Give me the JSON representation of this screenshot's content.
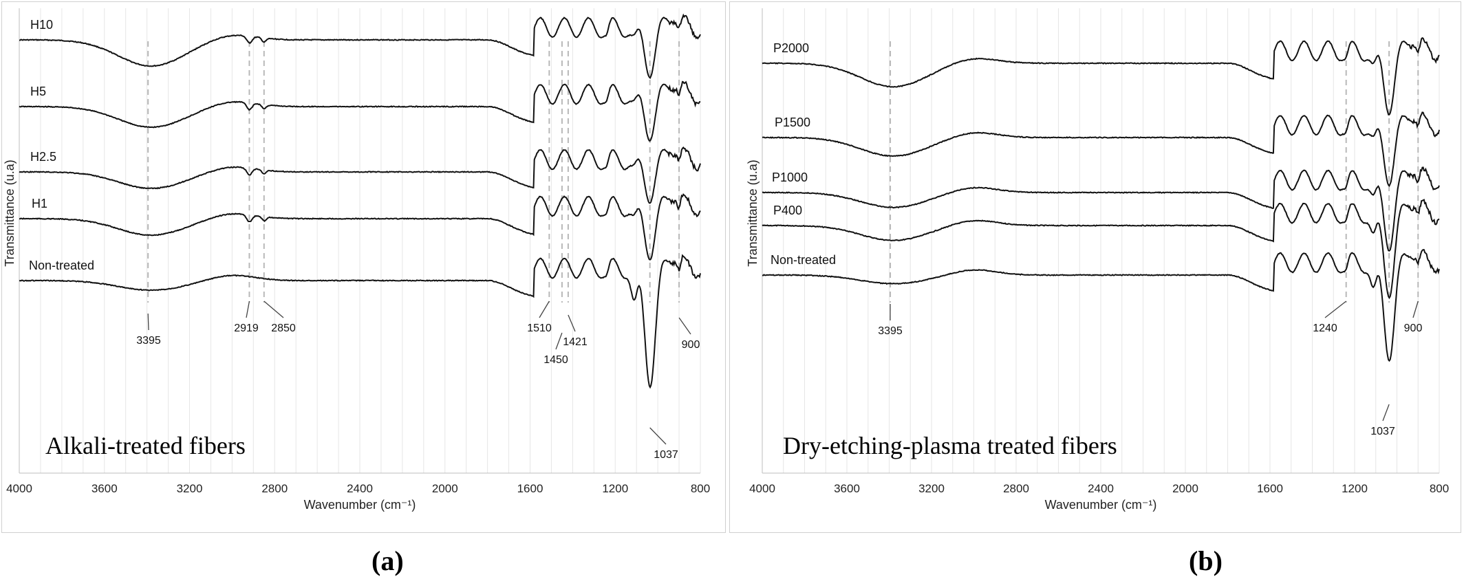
{
  "panels": {
    "a": "(a)",
    "b": "(b)"
  },
  "chart_data": [
    {
      "type": "line",
      "title": "Alkali-treated fibers",
      "xlabel": "Wavenumber (cm⁻¹)",
      "ylabel": "Transmittance (u.a)",
      "xlim": [
        4000,
        800
      ],
      "x_ticks": [
        4000,
        3600,
        3200,
        2800,
        2400,
        2000,
        1600,
        1200,
        800
      ],
      "grid": "vertical",
      "series": [
        {
          "name": "H10",
          "offset": 0.88
        },
        {
          "name": "H5",
          "offset": 0.74
        },
        {
          "name": "H2.5",
          "offset": 0.62
        },
        {
          "name": "H1",
          "offset": 0.56
        },
        {
          "name": "Non-treated",
          "offset": 0.42
        }
      ],
      "annotations": [
        {
          "x": 3395,
          "label": "3395"
        },
        {
          "x": 2919,
          "label": "2919"
        },
        {
          "x": 2850,
          "label": "2850"
        },
        {
          "x": 1510,
          "label": "1510"
        },
        {
          "x": 1450,
          "label": "1450"
        },
        {
          "x": 1421,
          "label": "1421"
        },
        {
          "x": 1037,
          "label": "1037"
        },
        {
          "x": 900,
          "label": "900"
        }
      ]
    },
    {
      "type": "line",
      "title": "Dry-etching-plasma treated fibers",
      "xlabel": "Wavenumber (cm⁻¹)",
      "ylabel": "Transmittance (u.a)",
      "xlim": [
        4000,
        800
      ],
      "x_ticks": [
        4000,
        3600,
        3200,
        2800,
        2400,
        2000,
        1600,
        1200,
        800
      ],
      "grid": "vertical",
      "series": [
        {
          "name": "P2000",
          "offset": 0.82
        },
        {
          "name": "P1500",
          "offset": 0.68
        },
        {
          "name": "P1000",
          "offset": 0.57
        },
        {
          "name": "P400",
          "offset": 0.5
        },
        {
          "name": "Non-treated",
          "offset": 0.42
        }
      ],
      "annotations": [
        {
          "x": 3395,
          "label": "3395"
        },
        {
          "x": 1240,
          "label": "1240"
        },
        {
          "x": 1037,
          "label": "1037"
        },
        {
          "x": 900,
          "label": "900"
        }
      ]
    }
  ]
}
